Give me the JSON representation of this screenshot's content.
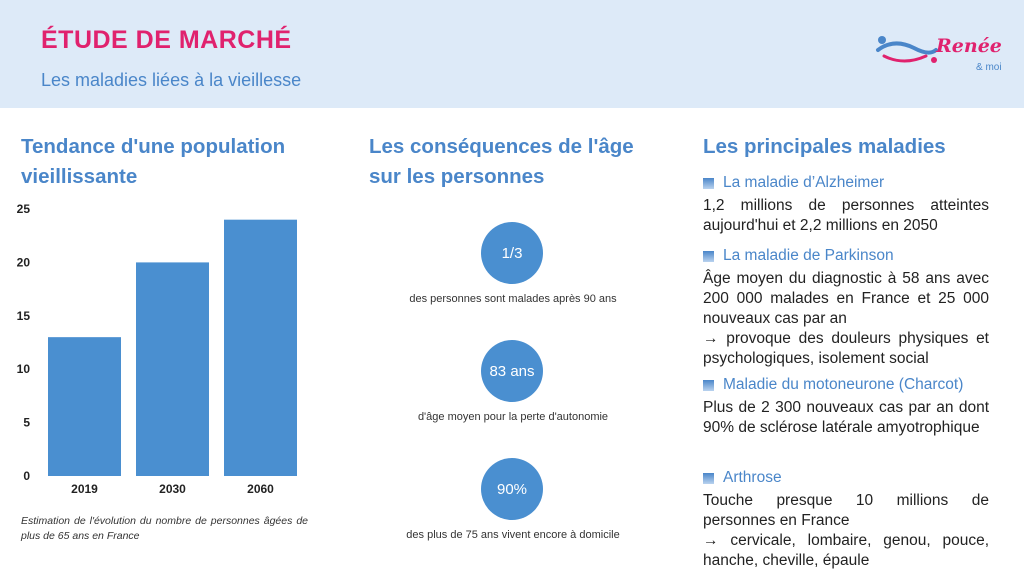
{
  "header": {
    "title": "ÉTUDE DE MARCHÉ",
    "subtitle": "Les maladies liées à la vieillesse",
    "logo_text": "Renée",
    "logo_sub": "& moi"
  },
  "trend": {
    "heading": "Tendance d'une population vieillissante",
    "caption": "Estimation de l'évolution du nombre de personnes âgées de plus de 65 ans en France"
  },
  "chart_data": {
    "type": "bar",
    "categories": [
      "2019",
      "2030",
      "2060"
    ],
    "values": [
      13,
      20,
      24
    ],
    "ylim": [
      0,
      25
    ],
    "yticks": [
      "0",
      "5",
      "10",
      "15",
      "20",
      "25"
    ],
    "bar_color": "#4a8fd0",
    "title": "",
    "xlabel": "",
    "ylabel": ""
  },
  "consequences": {
    "heading": "Les conséquences de l'âge sur les personnes",
    "stats": [
      {
        "value": "1/3",
        "label": "des personnes sont malades après 90 ans"
      },
      {
        "value": "83 ans",
        "label": "d'âge moyen pour la perte d'autonomie"
      },
      {
        "value": "90%",
        "label": "des plus de 75 ans vivent encore à domicile"
      }
    ]
  },
  "diseases": {
    "heading": "Les principales maladies",
    "items": [
      {
        "name": "La maladie d’Alzheimer",
        "desc": [
          "1,2 millions de personnes atteintes aujourd'hui et 2,2 millions en 2050"
        ]
      },
      {
        "name": "La maladie de Parkinson",
        "desc": [
          "Âge moyen du diagnostic à 58 ans avec 200 000 malades en France et 25 000 nouveaux cas par an",
          "→ provoque des douleurs physiques et psychologiques, isolement social"
        ]
      },
      {
        "name": "Maladie du motoneurone (Charcot)",
        "desc": [
          "Plus de 2 300 nouveaux cas par an dont 90% de sclérose latérale amyotrophique"
        ]
      },
      {
        "name": "Arthrose",
        "desc": [
          "Touche presque 10 millions de personnes en France",
          "→ cervicale, lombaire, genou, pouce, hanche, cheville, épaule"
        ]
      }
    ]
  },
  "colors": {
    "accent": "#e0226e",
    "primary": "#4a86c9",
    "header_bg": "#ddeaf8"
  }
}
